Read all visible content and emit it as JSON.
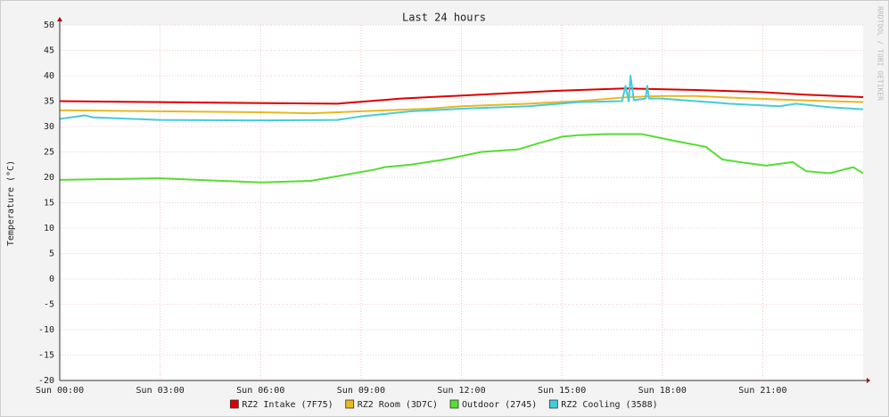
{
  "chart_data": {
    "type": "line",
    "title": "Last 24 hours",
    "ylabel": "Temperature (°C)",
    "watermark": "RRDTOOL / TOBI OETIKER",
    "xlim": [
      0,
      24
    ],
    "xticks": [
      {
        "value": 0,
        "label": "Sun 00:00"
      },
      {
        "value": 3,
        "label": "Sun 03:00"
      },
      {
        "value": 6,
        "label": "Sun 06:00"
      },
      {
        "value": 9,
        "label": "Sun 09:00"
      },
      {
        "value": 12,
        "label": "Sun 12:00"
      },
      {
        "value": 15,
        "label": "Sun 15:00"
      },
      {
        "value": 18,
        "label": "Sun 18:00"
      },
      {
        "value": 21,
        "label": "Sun 21:00"
      }
    ],
    "ylim": [
      -20,
      50
    ],
    "yticks": [
      -20,
      -15,
      -10,
      -5,
      0,
      5,
      10,
      15,
      20,
      25,
      30,
      35,
      40,
      45,
      50
    ],
    "grid": true,
    "legend": "bottom",
    "series": [
      {
        "name": "RZ2 Intake (7F75)",
        "color": "#dd0000",
        "x": [
          0,
          6.2,
          8.3,
          10.2,
          12.6,
          14.7,
          16.9,
          19,
          20.9,
          22.2,
          24
        ],
        "values": [
          35,
          34.6,
          34.5,
          35.5,
          36.3,
          37,
          37.5,
          37.2,
          36.8,
          36.3,
          35.8
        ]
      },
      {
        "name": "RZ2 Room (3D7C)",
        "color": "#e8b820",
        "x": [
          0,
          3,
          6,
          7.5,
          9,
          11,
          12,
          14,
          15.5,
          17,
          18,
          19,
          20,
          22,
          24
        ],
        "values": [
          33.2,
          33,
          32.8,
          32.6,
          33,
          33.5,
          34,
          34.5,
          35,
          35.8,
          36,
          36,
          35.7,
          35.2,
          34.8
        ]
      },
      {
        "name": "Outdoor (2745)",
        "color": "#55dd33",
        "x": [
          0,
          3,
          6,
          7.5,
          8.1,
          9.4,
          9.7,
          10.5,
          11.5,
          12.6,
          13.7,
          14.2,
          15,
          15.5,
          16.3,
          17.4,
          17.9,
          18.5,
          19.3,
          19.8,
          20.3,
          21.1,
          21.9,
          22.3,
          23,
          23.7,
          24
        ],
        "values": [
          19.5,
          19.8,
          19,
          19.3,
          20,
          21.5,
          22,
          22.5,
          23.5,
          25,
          25.5,
          26.5,
          28,
          28.3,
          28.5,
          28.5,
          27.8,
          27,
          26,
          23.5,
          23,
          22.3,
          23,
          21.2,
          20.8,
          22,
          20.8
        ]
      },
      {
        "name": "RZ2 Cooling (3588)",
        "color": "#44ccdd",
        "x": [
          0,
          0.75,
          1,
          3,
          6,
          8.3,
          9,
          10.5,
          12,
          14,
          15.5,
          16.8,
          16.9,
          17,
          17.05,
          17.15,
          17.5,
          17.55,
          17.6,
          18,
          19,
          20,
          21.5,
          22,
          23,
          24
        ],
        "values": [
          31.5,
          32.2,
          31.8,
          31.3,
          31.2,
          31.3,
          32,
          33,
          33.5,
          34,
          34.8,
          35,
          38,
          35,
          40,
          35.2,
          35.5,
          38,
          35.5,
          35.5,
          35,
          34.5,
          34,
          34.5,
          33.8,
          33.4
        ]
      }
    ]
  }
}
